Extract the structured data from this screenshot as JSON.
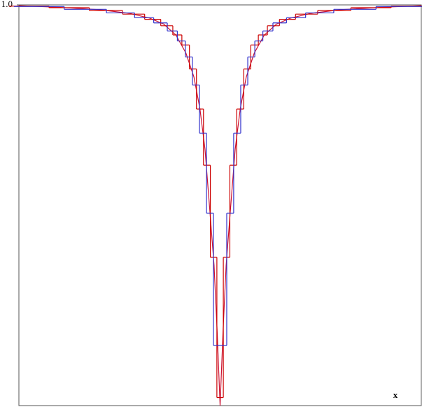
{
  "chart_data": {
    "type": "line",
    "xlabel": "x",
    "xlim": [
      -1,
      1
    ],
    "ylim": [
      0,
      1
    ],
    "yticks": [
      {
        "value": 1,
        "label": "1.0"
      }
    ],
    "series": [
      {
        "color": "#cc1133",
        "drawstyle": "default",
        "x": [
          -1,
          -0.8,
          -0.6,
          -0.45,
          -0.35,
          -0.28,
          -0.22,
          -0.17,
          -0.13,
          -0.1,
          -0.075,
          -0.05,
          -0.03,
          -0.015,
          0,
          0.015,
          0.03,
          0.05,
          0.075,
          0.1,
          0.13,
          0.17,
          0.22,
          0.28,
          0.35,
          0.45,
          0.6,
          0.8,
          1
        ],
        "values": [
          0.998,
          0.994,
          0.988,
          0.979,
          0.967,
          0.952,
          0.925,
          0.88,
          0.82,
          0.74,
          0.64,
          0.48,
          0.35,
          0.19,
          0,
          0.19,
          0.35,
          0.48,
          0.64,
          0.74,
          0.82,
          0.88,
          0.925,
          0.952,
          0.967,
          0.979,
          0.988,
          0.994,
          0.998
        ]
      },
      {
        "color": "#cc0000",
        "drawstyle": "steps-mid",
        "x": [
          -0.95,
          -0.75,
          -0.55,
          -0.42,
          -0.33,
          -0.26,
          -0.21,
          -0.17,
          -0.135,
          -0.1,
          -0.065,
          -0.032,
          0,
          0.032,
          0.065,
          0.1,
          0.135,
          0.17,
          0.21,
          0.26,
          0.33,
          0.42,
          0.55,
          0.75,
          0.95
        ],
        "values": [
          0.997,
          0.993,
          0.986,
          0.977,
          0.964,
          0.948,
          0.925,
          0.9,
          0.84,
          0.74,
          0.6,
          0.37,
          0.02,
          0.37,
          0.6,
          0.74,
          0.84,
          0.9,
          0.925,
          0.948,
          0.964,
          0.977,
          0.986,
          0.993,
          0.997
        ]
      },
      {
        "color": "#3333cc",
        "drawstyle": "steps-mid",
        "x": [
          -0.9,
          -0.65,
          -0.48,
          -0.37,
          -0.29,
          -0.235,
          -0.19,
          -0.155,
          -0.12,
          -0.085,
          -0.05,
          -0.016,
          0.016,
          0.05,
          0.085,
          0.12,
          0.155,
          0.19,
          0.235,
          0.29,
          0.37,
          0.48,
          0.65,
          0.9
        ],
        "values": [
          0.996,
          0.989,
          0.98,
          0.968,
          0.955,
          0.935,
          0.91,
          0.87,
          0.8,
          0.68,
          0.48,
          0.15,
          0.15,
          0.48,
          0.68,
          0.8,
          0.87,
          0.91,
          0.935,
          0.955,
          0.968,
          0.98,
          0.989,
          0.996
        ]
      }
    ]
  }
}
